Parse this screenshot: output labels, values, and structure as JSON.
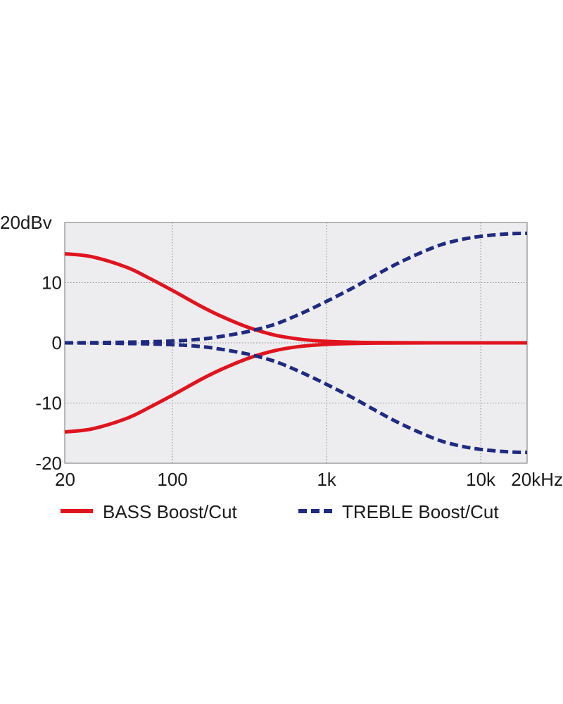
{
  "chart_data": {
    "type": "line",
    "title": "",
    "xlabel": "",
    "ylabel": "",
    "x_scale": "log",
    "xlim": [
      20,
      20000
    ],
    "ylim": [
      -20,
      20
    ],
    "grid": true,
    "legend_position": "bottom",
    "x_ticks": [
      {
        "value": 20,
        "label": "20"
      },
      {
        "value": 100,
        "label": "100"
      },
      {
        "value": 1000,
        "label": "1k"
      },
      {
        "value": 10000,
        "label": "10k"
      },
      {
        "value": 20000,
        "label": "20kHz"
      }
    ],
    "y_ticks": [
      {
        "value": 20,
        "label": "20dBv"
      },
      {
        "value": 10,
        "label": "10"
      },
      {
        "value": 0,
        "label": "0"
      },
      {
        "value": -10,
        "label": "-10"
      },
      {
        "value": -20,
        "label": "-20"
      }
    ],
    "series": [
      {
        "name": "BASS Boost/Cut",
        "color": "#e0141e",
        "style": "solid",
        "curves": [
          {
            "x": [
              20,
              30,
              50,
              70,
              100,
              150,
              200,
              300,
              400,
              500,
              700,
              1000,
              1500,
              2000,
              5000,
              20000
            ],
            "y": [
              14.8,
              14.3,
              12.6,
              10.8,
              8.7,
              6.2,
              4.6,
              2.7,
              1.7,
              1.1,
              0.55,
              0.25,
              0.1,
              0.05,
              0,
              0
            ]
          },
          {
            "x": [
              20,
              30,
              50,
              70,
              100,
              150,
              200,
              300,
              400,
              500,
              700,
              1000,
              1500,
              2000,
              5000,
              20000
            ],
            "y": [
              -14.8,
              -14.3,
              -12.6,
              -10.8,
              -8.7,
              -6.2,
              -4.6,
              -2.7,
              -1.7,
              -1.1,
              -0.55,
              -0.25,
              -0.1,
              -0.05,
              0,
              0
            ]
          }
        ]
      },
      {
        "name": "TREBLE Boost/Cut",
        "color": "#1f2a80",
        "style": "dashed",
        "curves": [
          {
            "x": [
              20,
              50,
              100,
              150,
              200,
              300,
              400,
              500,
              700,
              1000,
              1500,
              2000,
              3000,
              5000,
              7000,
              10000,
              15000,
              20000
            ],
            "y": [
              0,
              0.1,
              0.3,
              0.6,
              1.0,
              1.8,
              2.6,
              3.4,
              5.0,
              6.9,
              9.2,
              11.0,
              13.4,
              15.9,
              17.0,
              17.7,
              18.1,
              18.2
            ]
          },
          {
            "x": [
              20,
              50,
              100,
              150,
              200,
              300,
              400,
              500,
              700,
              1000,
              1500,
              2000,
              3000,
              5000,
              7000,
              10000,
              15000,
              20000
            ],
            "y": [
              0,
              -0.1,
              -0.3,
              -0.6,
              -1.0,
              -1.8,
              -2.6,
              -3.4,
              -5.0,
              -6.9,
              -9.2,
              -11.0,
              -13.4,
              -15.9,
              -17.0,
              -17.7,
              -18.1,
              -18.2
            ]
          }
        ]
      }
    ]
  }
}
